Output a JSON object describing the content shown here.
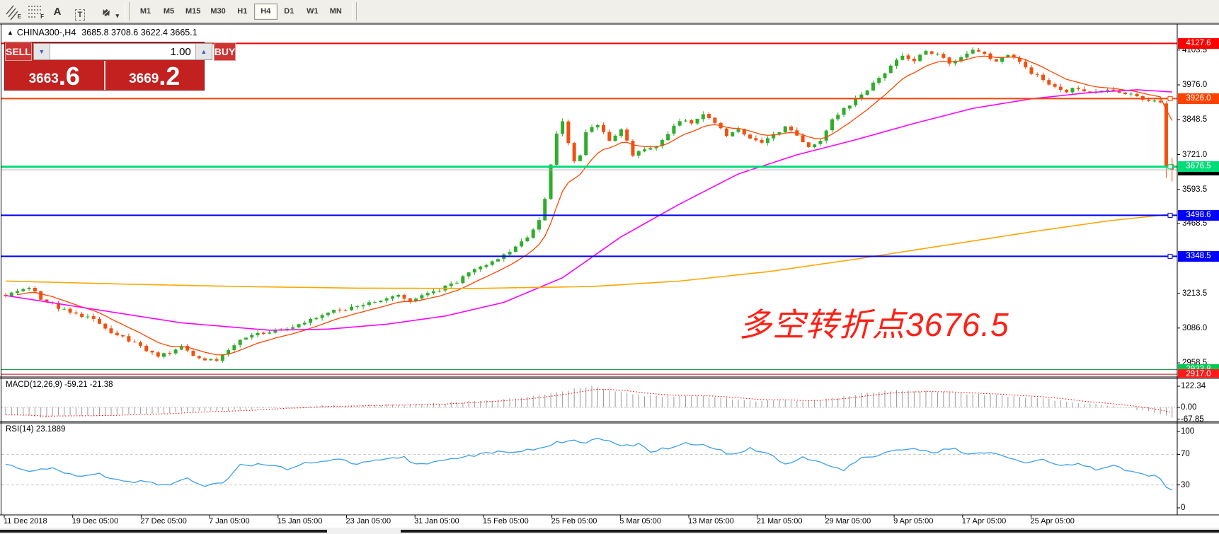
{
  "toolbar": {
    "icons": [
      {
        "name": "equidistant-channel-icon",
        "letter": "E"
      },
      {
        "name": "fibonacci-retracement-icon",
        "letter": "F"
      },
      {
        "name": "text-tool-icon",
        "letter": "A"
      },
      {
        "name": "text-label-icon",
        "letter": "T"
      },
      {
        "name": "arrow-objects-icon",
        "letter": "▾"
      }
    ],
    "timeframes": [
      {
        "label": "M1",
        "active": false
      },
      {
        "label": "M5",
        "active": false
      },
      {
        "label": "M15",
        "active": false
      },
      {
        "label": "M30",
        "active": false
      },
      {
        "label": "H1",
        "active": false
      },
      {
        "label": "H4",
        "active": true
      },
      {
        "label": "D1",
        "active": false
      },
      {
        "label": "W1",
        "active": false
      },
      {
        "label": "MN",
        "active": false
      }
    ]
  },
  "chart": {
    "collapse_icon": "▲",
    "symbol_title": "CHINA300-,H4",
    "ohlc_text": "3685.8 3708.6 3622.4 3665.1",
    "annotation": {
      "text": "多空转折点3676.5",
      "color": "#ff2015"
    },
    "trade_panel": {
      "sell_label": "SELL",
      "buy_label": "BUY",
      "volume": "1.00",
      "spin_down": "▼",
      "spin_up": "▲",
      "sell_price_main": "3663",
      "sell_price_fraction": ".6",
      "buy_price_main": "3669",
      "buy_price_fraction": ".2"
    }
  },
  "indicators": {
    "macd_label": "MACD(12,26,9) -59.21 -21.38",
    "rsi_label": "RSI(14) 23.1889"
  },
  "chart_data": [
    {
      "type": "candlestick",
      "title": "CHINA300-,H4",
      "current_bar": {
        "open": 3685.8,
        "high": 3708.6,
        "low": 3622.4,
        "close": 3665.1
      },
      "x_labels": [
        "11 Dec 2018",
        "19 Dec 05:00",
        "27 Dec 05:00",
        "7 Jan 05:00",
        "15 Jan 05:00",
        "23 Jan 05:00",
        "31 Jan 05:00",
        "15 Feb 05:00",
        "25 Feb 05:00",
        "5 Mar 05:00",
        "13 Mar 05:00",
        "21 Mar 05:00",
        "29 Mar 05:00",
        "9 Apr 05:00",
        "17 Apr 05:00",
        "25 Apr 05:00"
      ],
      "y_ticks": [
        {
          "label": "4103.5",
          "value": 4103.5
        },
        {
          "label": "3976.0",
          "value": 3976.0
        },
        {
          "label": "3848.5",
          "value": 3848.5
        },
        {
          "label": "3721.0",
          "value": 3721.0
        },
        {
          "label": "3593.5",
          "value": 3593.5
        },
        {
          "label": "3468.5",
          "value": 3468.5
        },
        {
          "label": "3213.5",
          "value": 3213.5
        },
        {
          "label": "3086.0",
          "value": 3086.0
        },
        {
          "label": "2958.5",
          "value": 2958.5
        }
      ],
      "price_lines": [
        {
          "label": "4127.6",
          "value": 4127.6,
          "color": "#ff0000",
          "width": 2,
          "handle": false
        },
        {
          "label": "3926.0",
          "value": 3926.0,
          "color": "#ff4200",
          "width": 2,
          "handle": true
        },
        {
          "label": "3676.5",
          "value": 3676.5,
          "color": "#00dc78",
          "width": 3,
          "handle": true
        },
        {
          "label": "3665.1",
          "value": 3665.1,
          "color": "#b4b4b4",
          "width": 1,
          "handle": false,
          "badge_color": "#000000"
        },
        {
          "label": "3498.6",
          "value": 3498.6,
          "color": "#0000ff",
          "width": 2,
          "handle": true
        },
        {
          "label": "3348.5",
          "value": 3348.5,
          "color": "#0000ff",
          "width": 2,
          "handle": true
        },
        {
          "label": "2933.8",
          "value": 2933.8,
          "color": "#008a30",
          "width": 1,
          "handle": false,
          "badge_color": "#00c853"
        },
        {
          "label": "2917.0",
          "value": 2917.0,
          "color": "#d40000",
          "width": 1,
          "handle": false,
          "badge_color": "#ff1a1a"
        }
      ],
      "colors": {
        "up": "#2fad2b",
        "down": "#f1500f"
      },
      "close_anchors": [
        [
          0,
          3205
        ],
        [
          2,
          3225
        ],
        [
          4,
          3238
        ],
        [
          6,
          3195
        ],
        [
          9,
          3162
        ],
        [
          12,
          3138
        ],
        [
          15,
          3118
        ],
        [
          18,
          3072
        ],
        [
          21,
          3042
        ],
        [
          24,
          3002
        ],
        [
          26,
          2986
        ],
        [
          28,
          2996
        ],
        [
          30,
          3016
        ],
        [
          32,
          2986
        ],
        [
          34,
          2972
        ],
        [
          36,
          2968
        ],
        [
          38,
          3002
        ],
        [
          40,
          3046
        ],
        [
          43,
          3066
        ],
        [
          46,
          3076
        ],
        [
          49,
          3086
        ],
        [
          52,
          3116
        ],
        [
          55,
          3142
        ],
        [
          58,
          3156
        ],
        [
          61,
          3172
        ],
        [
          64,
          3192
        ],
        [
          67,
          3206
        ],
        [
          69,
          3182
        ],
        [
          71,
          3202
        ],
        [
          74,
          3226
        ],
        [
          77,
          3256
        ],
        [
          80,
          3302
        ],
        [
          83,
          3332
        ],
        [
          86,
          3366
        ],
        [
          89,
          3418
        ],
        [
          91,
          3482
        ],
        [
          92,
          3562
        ],
        [
          93,
          3682
        ],
        [
          94,
          3802
        ],
        [
          95,
          3842
        ],
        [
          96,
          3762
        ],
        [
          97,
          3702
        ],
        [
          98,
          3722
        ],
        [
          99,
          3802
        ],
        [
          101,
          3832
        ],
        [
          103,
          3772
        ],
        [
          105,
          3812
        ],
        [
          107,
          3722
        ],
        [
          109,
          3742
        ],
        [
          111,
          3752
        ],
        [
          113,
          3802
        ],
        [
          115,
          3846
        ],
        [
          117,
          3836
        ],
        [
          119,
          3866
        ],
        [
          121,
          3842
        ],
        [
          123,
          3792
        ],
        [
          125,
          3816
        ],
        [
          127,
          3782
        ],
        [
          129,
          3762
        ],
        [
          131,
          3792
        ],
        [
          133,
          3822
        ],
        [
          135,
          3792
        ],
        [
          137,
          3752
        ],
        [
          139,
          3772
        ],
        [
          141,
          3852
        ],
        [
          143,
          3886
        ],
        [
          145,
          3922
        ],
        [
          147,
          3956
        ],
        [
          149,
          4002
        ],
        [
          151,
          4042
        ],
        [
          153,
          4082
        ],
        [
          155,
          4066
        ],
        [
          157,
          4096
        ],
        [
          159,
          4086
        ],
        [
          161,
          4056
        ],
        [
          163,
          4076
        ],
        [
          165,
          4106
        ],
        [
          167,
          4086
        ],
        [
          169,
          4062
        ],
        [
          171,
          4082
        ],
        [
          173,
          4060
        ],
        [
          175,
          4022
        ],
        [
          177,
          3992
        ],
        [
          179,
          3972
        ],
        [
          181,
          3952
        ],
        [
          183,
          3966
        ],
        [
          185,
          3942
        ],
        [
          187,
          3952
        ],
        [
          189,
          3960
        ],
        [
          191,
          3944
        ],
        [
          193,
          3932
        ],
        [
          195,
          3922
        ],
        [
          197,
          3914
        ]
      ],
      "last_bars": [
        {
          "open": 3908,
          "high": 3916,
          "low": 3636,
          "close": 3676
        },
        {
          "open": 3685.8,
          "high": 3708.6,
          "low": 3622.4,
          "close": 3665.1
        }
      ],
      "moving_averages": [
        {
          "name": "fast",
          "color": "#ff4500",
          "type": "ema_close",
          "period": 10
        },
        {
          "name": "medium",
          "color": "#ff00ff",
          "anchors": [
            [
              0,
              3205
            ],
            [
              15,
              3155
            ],
            [
              30,
              3105
            ],
            [
              45,
              3078
            ],
            [
              55,
              3082
            ],
            [
              65,
              3100
            ],
            [
              75,
              3130
            ],
            [
              85,
              3180
            ],
            [
              95,
              3270
            ],
            [
              105,
              3420
            ],
            [
              115,
              3540
            ],
            [
              125,
              3650
            ],
            [
              135,
              3720
            ],
            [
              145,
              3775
            ],
            [
              155,
              3835
            ],
            [
              165,
              3890
            ],
            [
              175,
              3925
            ],
            [
              185,
              3948
            ],
            [
              193,
              3958
            ],
            [
              199,
              3950
            ]
          ]
        },
        {
          "name": "slow",
          "color": "#ffa500",
          "anchors": [
            [
              0,
              3258
            ],
            [
              20,
              3247
            ],
            [
              40,
              3238
            ],
            [
              60,
              3232
            ],
            [
              80,
              3231
            ],
            [
              100,
              3238
            ],
            [
              115,
              3258
            ],
            [
              130,
              3292
            ],
            [
              145,
              3338
            ],
            [
              160,
              3388
            ],
            [
              175,
              3438
            ],
            [
              188,
              3478
            ],
            [
              199,
              3503
            ]
          ]
        }
      ]
    },
    {
      "type": "macd",
      "label": "MACD(12,26,9)",
      "main_value": -59.21,
      "signal_value": -21.38,
      "y_ticks": [
        {
          "label": "122.34",
          "value": 122.34
        },
        {
          "label": "0.00",
          "value": 0
        },
        {
          "label": "-67.85",
          "value": -67.85
        }
      ],
      "histogram_color": "#9a9a9a",
      "signal_color": "#ff0000",
      "anchors": [
        [
          0,
          -45
        ],
        [
          6,
          -55
        ],
        [
          12,
          -48
        ],
        [
          18,
          -42
        ],
        [
          24,
          -38
        ],
        [
          30,
          -28
        ],
        [
          36,
          -22
        ],
        [
          42,
          -10
        ],
        [
          48,
          0
        ],
        [
          54,
          8
        ],
        [
          60,
          12
        ],
        [
          66,
          15
        ],
        [
          72,
          20
        ],
        [
          78,
          30
        ],
        [
          84,
          42
        ],
        [
          88,
          55
        ],
        [
          92,
          75
        ],
        [
          96,
          100
        ],
        [
          100,
          122
        ],
        [
          104,
          95
        ],
        [
          108,
          70
        ],
        [
          112,
          62
        ],
        [
          116,
          68
        ],
        [
          120,
          60
        ],
        [
          124,
          48
        ],
        [
          128,
          38
        ],
        [
          132,
          42
        ],
        [
          136,
          35
        ],
        [
          140,
          48
        ],
        [
          144,
          68
        ],
        [
          148,
          88
        ],
        [
          152,
          100
        ],
        [
          156,
          96
        ],
        [
          160,
          88
        ],
        [
          164,
          78
        ],
        [
          168,
          72
        ],
        [
          172,
          64
        ],
        [
          176,
          55
        ],
        [
          180,
          38
        ],
        [
          184,
          22
        ],
        [
          188,
          8
        ],
        [
          191,
          0
        ],
        [
          194,
          -18
        ],
        [
          196,
          -32
        ],
        [
          198,
          -48
        ],
        [
          199,
          -59.21
        ]
      ]
    },
    {
      "type": "rsi",
      "label": "RSI(14)",
      "value": 23.1889,
      "y_ticks": [
        {
          "label": "100",
          "value": 100
        },
        {
          "label": "70",
          "value": 70
        },
        {
          "label": "30",
          "value": 30
        },
        {
          "label": "0",
          "value": 0
        }
      ],
      "levels": [
        70,
        30
      ],
      "line_color": "#3d9fe8",
      "anchors": [
        [
          0,
          56
        ],
        [
          4,
          48
        ],
        [
          8,
          52
        ],
        [
          12,
          42
        ],
        [
          16,
          44
        ],
        [
          20,
          36
        ],
        [
          24,
          33
        ],
        [
          28,
          30
        ],
        [
          31,
          38
        ],
        [
          34,
          29
        ],
        [
          37,
          33
        ],
        [
          40,
          55
        ],
        [
          44,
          58
        ],
        [
          48,
          50
        ],
        [
          52,
          60
        ],
        [
          56,
          63
        ],
        [
          60,
          58
        ],
        [
          64,
          64
        ],
        [
          68,
          67
        ],
        [
          70,
          56
        ],
        [
          74,
          61
        ],
        [
          78,
          67
        ],
        [
          82,
          71
        ],
        [
          86,
          74
        ],
        [
          90,
          77
        ],
        [
          93,
          83
        ],
        [
          96,
          88
        ],
        [
          99,
          85
        ],
        [
          101,
          93
        ],
        [
          103,
          86
        ],
        [
          105,
          80
        ],
        [
          108,
          84
        ],
        [
          110,
          74
        ],
        [
          113,
          79
        ],
        [
          116,
          85
        ],
        [
          120,
          81
        ],
        [
          124,
          69
        ],
        [
          127,
          77
        ],
        [
          130,
          71
        ],
        [
          133,
          58
        ],
        [
          136,
          66
        ],
        [
          140,
          58
        ],
        [
          143,
          50
        ],
        [
          146,
          64
        ],
        [
          150,
          71
        ],
        [
          154,
          77
        ],
        [
          158,
          73
        ],
        [
          162,
          77
        ],
        [
          165,
          69
        ],
        [
          168,
          73
        ],
        [
          171,
          66
        ],
        [
          174,
          60
        ],
        [
          177,
          64
        ],
        [
          180,
          54
        ],
        [
          183,
          57
        ],
        [
          186,
          50
        ],
        [
          189,
          54
        ],
        [
          192,
          48
        ],
        [
          194,
          44
        ],
        [
          196,
          41
        ],
        [
          197,
          38
        ],
        [
          198,
          27
        ],
        [
          199,
          23.19
        ]
      ]
    }
  ]
}
